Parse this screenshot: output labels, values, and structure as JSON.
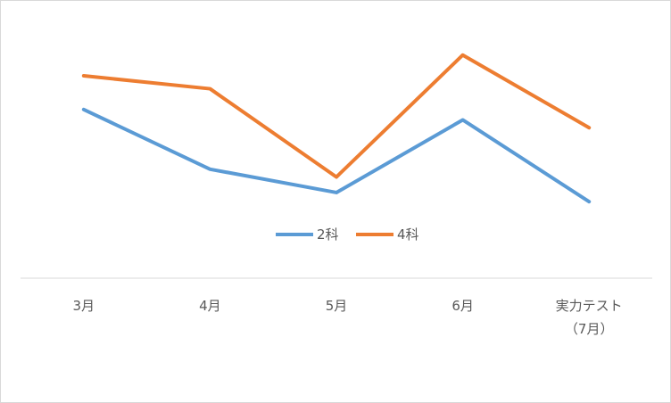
{
  "chart_data": {
    "type": "line",
    "categories": [
      "3月",
      "4月",
      "5月",
      "6月",
      "実力テスト\n（7月）"
    ],
    "series": [
      {
        "name": "2科",
        "color": "#5b9bd5",
        "values": [
          65,
          42,
          33,
          61,
          29.5
        ]
      },
      {
        "name": "4科",
        "color": "#ed7d31",
        "values": [
          78,
          73,
          39,
          86,
          58
        ]
      }
    ],
    "ylim": [
      0,
      100
    ],
    "legend": "center"
  }
}
